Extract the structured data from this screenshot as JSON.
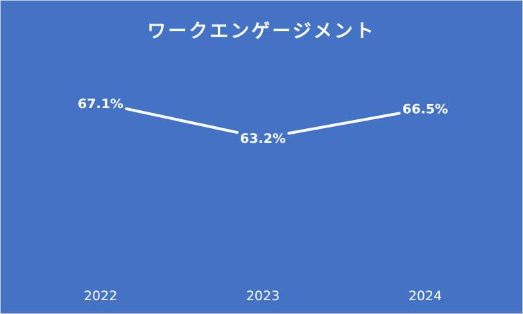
{
  "chart_data": {
    "type": "line",
    "title": "ワークエンゲージメント",
    "categories": [
      "2022",
      "2023",
      "2024"
    ],
    "series": [
      {
        "values": [
          67.1,
          63.2,
          66.5
        ],
        "labels": [
          "67.1%",
          "63.2%",
          "66.5%"
        ]
      }
    ],
    "xlabel": "",
    "ylabel": "",
    "grid": false,
    "legend": "none",
    "colors": {
      "background": "#4472c4",
      "line": "#ffffff",
      "text": "#ffffff"
    }
  }
}
